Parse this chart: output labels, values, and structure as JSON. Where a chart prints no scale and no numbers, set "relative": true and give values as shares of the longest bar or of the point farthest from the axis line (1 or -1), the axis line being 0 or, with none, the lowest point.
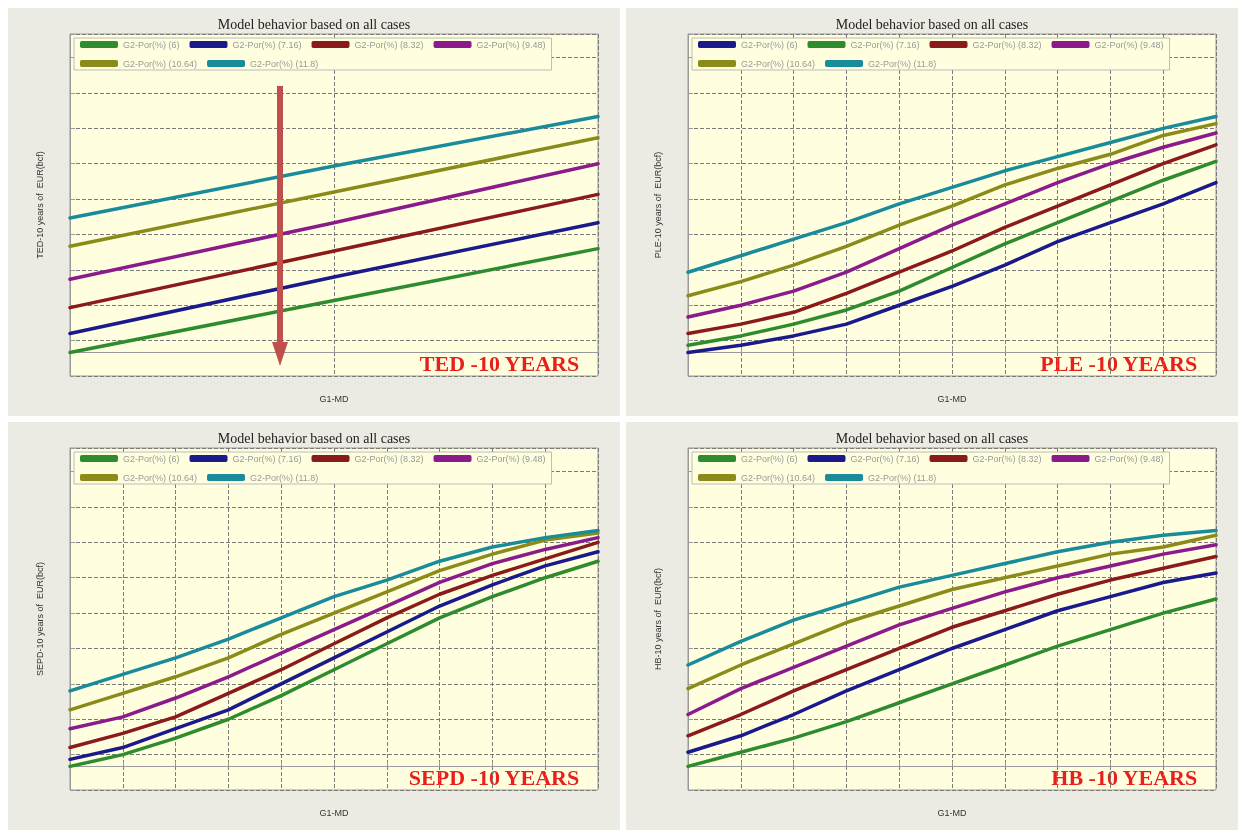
{
  "chart_data": [
    {
      "type": "line",
      "title": "Model behavior based on all cases",
      "xlabel": "G1-MD",
      "ylabel": "TED-10 years of  EUR(bcf)",
      "relative": true,
      "grid": true,
      "legend": "top",
      "marker": "none",
      "annotations": [
        "TED -10 YEARS"
      ],
      "categories": [
        null,
        null,
        null
      ],
      "series": [
        {
          "name": "G2-Por(%) (6)",
          "color": "#2e8b2e",
          "values": [
            0,
            0.22,
            0.44
          ]
        },
        {
          "name": "G2-Por(%) (7.16)",
          "color": "#1a1a8c",
          "values": [
            0.08,
            0.32,
            0.55
          ]
        },
        {
          "name": "G2-Por(%) (8.32)",
          "color": "#8b1a1a",
          "values": [
            0.19,
            0.43,
            0.67
          ]
        },
        {
          "name": "G2-Por(%) (9.48)",
          "color": "#8b1a8b",
          "values": [
            0.31,
            0.55,
            0.8
          ]
        },
        {
          "name": "G2-Por(%) (10.64)",
          "color": "#8b8b1a",
          "values": [
            0.45,
            0.68,
            0.91
          ]
        },
        {
          "name": "G2-Por(%) (11.8)",
          "color": "#1a8b9b",
          "values": [
            0.57,
            0.79,
            1
          ]
        }
      ]
    },
    {
      "type": "line",
      "title": "Model behavior based on all cases",
      "xlabel": "G1-MD",
      "ylabel": "PLE-10 years of  EUR(bcf)",
      "relative": true,
      "grid": true,
      "legend": "top",
      "marker": "none",
      "annotations": [
        "PLE -10 YEARS"
      ],
      "categories": [
        null,
        null,
        null,
        null,
        null,
        null,
        null,
        null,
        null,
        null,
        null
      ],
      "series": [
        {
          "name": "G2-Por(%) (6)",
          "color": "#1a1a8c",
          "values": [
            0,
            0.03,
            0.07,
            0.12,
            0.2,
            0.28,
            0.37,
            0.47,
            0.55,
            0.63,
            0.72
          ]
        },
        {
          "name": "G2-Por(%) (7.16)",
          "color": "#2e8b2e",
          "values": [
            0.03,
            0.07,
            0.12,
            0.18,
            0.26,
            0.36,
            0.46,
            0.55,
            0.64,
            0.73,
            0.81
          ]
        },
        {
          "name": "G2-Por(%) (8.32)",
          "color": "#8b1a1a",
          "values": [
            0.08,
            0.12,
            0.17,
            0.25,
            0.34,
            0.43,
            0.53,
            0.62,
            0.71,
            0.8,
            0.88
          ]
        },
        {
          "name": "G2-Por(%) (9.48)",
          "color": "#8b1a8b",
          "values": [
            0.15,
            0.2,
            0.26,
            0.34,
            0.44,
            0.54,
            0.63,
            0.72,
            0.8,
            0.87,
            0.93
          ]
        },
        {
          "name": "G2-Por(%) (10.64)",
          "color": "#8b8b1a",
          "values": [
            0.24,
            0.3,
            0.37,
            0.45,
            0.54,
            0.62,
            0.71,
            0.78,
            0.84,
            0.92,
            0.97
          ]
        },
        {
          "name": "G2-Por(%) (11.8)",
          "color": "#1a8b9b",
          "values": [
            0.34,
            0.41,
            0.48,
            0.55,
            0.63,
            0.7,
            0.77,
            0.83,
            0.89,
            0.95,
            1
          ]
        }
      ]
    },
    {
      "type": "line",
      "title": "Model behavior based on all cases",
      "xlabel": "G1-MD",
      "ylabel": "SEPD-10 years of  EUR(bcf)",
      "relative": true,
      "grid": true,
      "legend": "top",
      "marker": "none",
      "annotations": [
        "SEPD -10 YEARS"
      ],
      "categories": [
        null,
        null,
        null,
        null,
        null,
        null,
        null,
        null,
        null,
        null,
        null
      ],
      "series": [
        {
          "name": "G2-Por(%) (6)",
          "color": "#2e8b2e",
          "values": [
            0,
            0.05,
            0.12,
            0.2,
            0.3,
            0.41,
            0.52,
            0.63,
            0.72,
            0.8,
            0.87
          ]
        },
        {
          "name": "G2-Por(%) (7.16)",
          "color": "#1a1a8c",
          "values": [
            0.03,
            0.08,
            0.16,
            0.24,
            0.35,
            0.46,
            0.57,
            0.68,
            0.77,
            0.85,
            0.91
          ]
        },
        {
          "name": "G2-Por(%) (8.32)",
          "color": "#8b1a1a",
          "values": [
            0.08,
            0.14,
            0.21,
            0.31,
            0.41,
            0.52,
            0.63,
            0.73,
            0.81,
            0.88,
            0.95
          ]
        },
        {
          "name": "G2-Por(%) (9.48)",
          "color": "#8b1a8b",
          "values": [
            0.16,
            0.21,
            0.29,
            0.38,
            0.48,
            0.58,
            0.68,
            0.78,
            0.86,
            0.92,
            0.97
          ]
        },
        {
          "name": "G2-Por(%) (10.64)",
          "color": "#8b8b1a",
          "values": [
            0.24,
            0.31,
            0.38,
            0.46,
            0.56,
            0.65,
            0.74,
            0.83,
            0.9,
            0.96,
            0.99
          ]
        },
        {
          "name": "G2-Por(%) (11.8)",
          "color": "#1a8b9b",
          "values": [
            0.32,
            0.39,
            0.46,
            0.54,
            0.63,
            0.72,
            0.79,
            0.87,
            0.93,
            0.97,
            1
          ]
        }
      ]
    },
    {
      "type": "line",
      "title": "Model behavior based on all cases",
      "xlabel": "G1-MD",
      "ylabel": "HB-10 years of  EUR(bcf)",
      "relative": true,
      "grid": true,
      "legend": "top",
      "marker": "none",
      "annotations": [
        "HB -10 YEARS"
      ],
      "categories": [
        null,
        null,
        null,
        null,
        null,
        null,
        null,
        null,
        null,
        null,
        null
      ],
      "series": [
        {
          "name": "G2-Por(%) (6)",
          "color": "#2e8b2e",
          "values": [
            0,
            0.06,
            0.12,
            0.19,
            0.27,
            0.35,
            0.43,
            0.51,
            0.58,
            0.65,
            0.71
          ]
        },
        {
          "name": "G2-Por(%) (7.16)",
          "color": "#1a1a8c",
          "values": [
            0.06,
            0.13,
            0.22,
            0.32,
            0.41,
            0.5,
            0.58,
            0.66,
            0.72,
            0.78,
            0.82
          ]
        },
        {
          "name": "G2-Por(%) (8.32)",
          "color": "#8b1a1a",
          "values": [
            0.13,
            0.22,
            0.32,
            0.41,
            0.5,
            0.59,
            0.66,
            0.73,
            0.79,
            0.84,
            0.89
          ]
        },
        {
          "name": "G2-Por(%) (9.48)",
          "color": "#8b1a8b",
          "values": [
            0.22,
            0.33,
            0.42,
            0.51,
            0.6,
            0.67,
            0.74,
            0.8,
            0.85,
            0.9,
            0.94
          ]
        },
        {
          "name": "G2-Por(%) (10.64)",
          "color": "#8b8b1a",
          "values": [
            0.33,
            0.43,
            0.52,
            0.61,
            0.68,
            0.75,
            0.8,
            0.85,
            0.9,
            0.93,
            0.98
          ]
        },
        {
          "name": "G2-Por(%) (11.8)",
          "color": "#1a8b9b",
          "values": [
            0.43,
            0.53,
            0.62,
            0.69,
            0.76,
            0.81,
            0.86,
            0.91,
            0.95,
            0.98,
            1
          ]
        }
      ]
    }
  ]
}
